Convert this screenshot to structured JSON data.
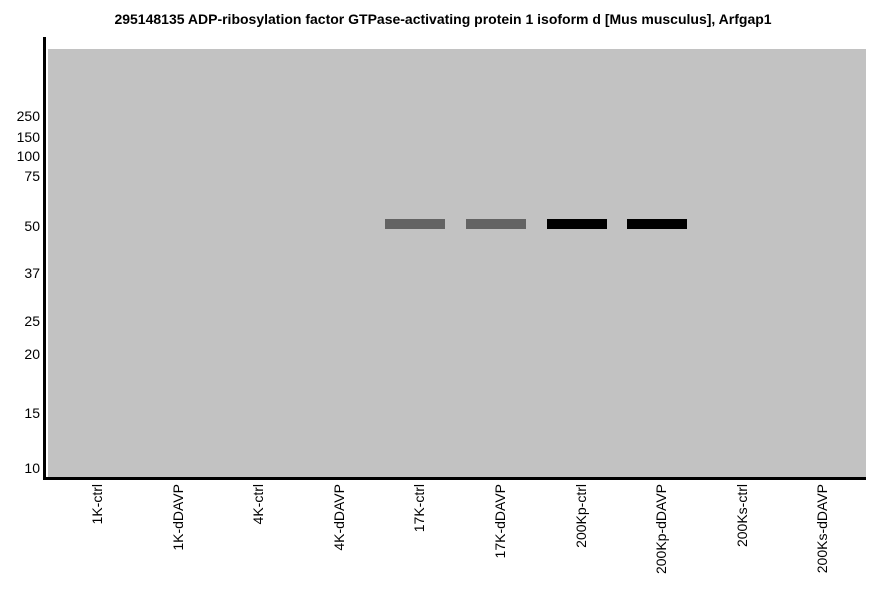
{
  "colors": {
    "page_background": "#ffffff",
    "gel_background": "#c2c2c2",
    "axis": "#000000",
    "text": "#000000",
    "band_medium": "#636363",
    "band_strong": "#000000"
  },
  "chart_data": {
    "type": "western-blot",
    "title": "295148135 ADP-ribosylation factor GTPase-activating protein 1 isoform d [Mus musculus], Arfgap1",
    "protein": "ADP-ribosylation factor GTPase-activating protein 1 isoform d",
    "organism": "Mus musculus",
    "gene": "Arfgap1",
    "gi_number": "295148135",
    "grid": false,
    "legend": false,
    "lanes": [
      "1K-ctrl",
      "1K-dDAVP",
      "4K-ctrl",
      "4K-dDAVP",
      "17K-ctrl",
      "17K-dDAVP",
      "200Kp-ctrl",
      "200Kp-dDAVP",
      "200Ks-ctrl",
      "200Ks-dDAVP"
    ],
    "mw_markers": [
      {
        "value": "250",
        "y_frac": 0.1566
      },
      {
        "value": "150",
        "y_frac": 0.2056
      },
      {
        "value": "100",
        "y_frac": 0.25
      },
      {
        "value": "75",
        "y_frac": 0.2967
      },
      {
        "value": "50",
        "y_frac": 0.4136
      },
      {
        "value": "37",
        "y_frac": 0.5234
      },
      {
        "value": "25",
        "y_frac": 0.6355
      },
      {
        "value": "20",
        "y_frac": 0.7126
      },
      {
        "value": "15",
        "y_frac": 0.8505
      },
      {
        "value": "10",
        "y_frac": 0.979
      }
    ],
    "band_y_frac": 0.4089,
    "bands": [
      {
        "lane": "17K-ctrl",
        "lane_index": 4,
        "mw_kda": 50,
        "intensity": "medium",
        "color_key": "band_medium"
      },
      {
        "lane": "17K-dDAVP",
        "lane_index": 5,
        "mw_kda": 50,
        "intensity": "medium",
        "color_key": "band_medium"
      },
      {
        "lane": "200Kp-ctrl",
        "lane_index": 6,
        "mw_kda": 50,
        "intensity": "strong",
        "color_key": "band_strong"
      },
      {
        "lane": "200Kp-dDAVP",
        "lane_index": 7,
        "mw_kda": 50,
        "intensity": "strong",
        "color_key": "band_strong"
      }
    ]
  }
}
